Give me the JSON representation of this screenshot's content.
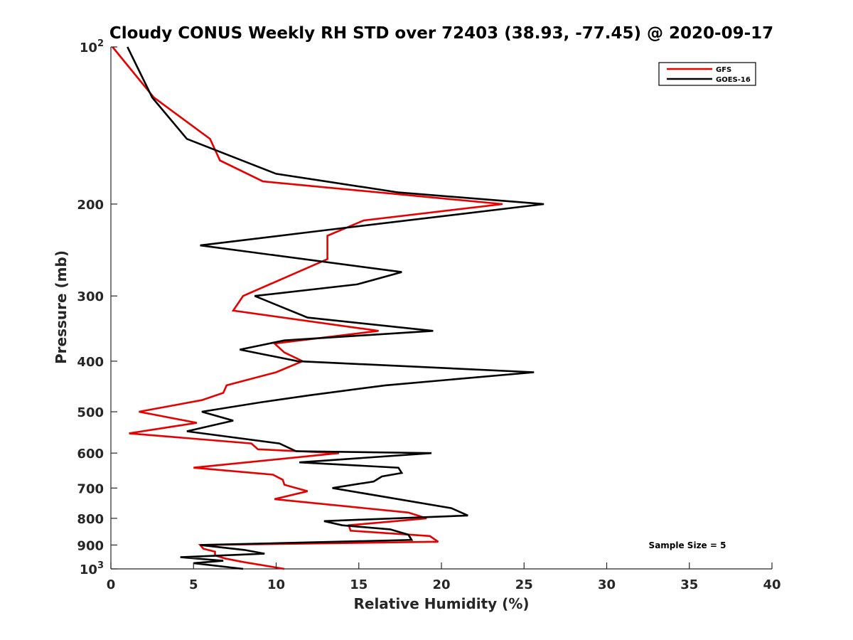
{
  "chart_data": {
    "type": "line",
    "title": "Cloudy CONUS Weekly RH STD over 72403 (38.93, -77.45) @ 2020-09-17",
    "xlabel": "Relative Humidity (%)",
    "ylabel": "Pressure (mb)",
    "xlim": [
      0,
      40
    ],
    "ylim": [
      100,
      1000
    ],
    "y_scale": "log",
    "y_reversed": true,
    "grid": false,
    "legend_position": "top-right",
    "x_ticks": [
      0,
      5,
      10,
      15,
      20,
      25,
      30,
      35,
      40
    ],
    "x_tick_labels": [
      "0",
      "5",
      "10",
      "15",
      "20",
      "25",
      "30",
      "35",
      "40"
    ],
    "y_ticks": [
      100,
      200,
      300,
      400,
      500,
      600,
      700,
      800,
      900,
      1000
    ],
    "y_tick_labels": [
      {
        "base": "10",
        "exp": "2"
      },
      {
        "base": "200",
        "exp": ""
      },
      {
        "base": "300",
        "exp": ""
      },
      {
        "base": "400",
        "exp": ""
      },
      {
        "base": "500",
        "exp": ""
      },
      {
        "base": "600",
        "exp": ""
      },
      {
        "base": "700",
        "exp": ""
      },
      {
        "base": "800",
        "exp": ""
      },
      {
        "base": "900",
        "exp": ""
      },
      {
        "base": "10",
        "exp": "3"
      }
    ],
    "annotation": "Sample Size = 5",
    "series": [
      {
        "name": "GFS",
        "color": "#e60000",
        "points": [
          [
            0.1,
            100
          ],
          [
            2.6,
            125
          ],
          [
            6.0,
            150
          ],
          [
            6.6,
            165
          ],
          [
            9.2,
            181
          ],
          [
            23.7,
            200
          ],
          [
            15.3,
            215
          ],
          [
            13.1,
            230
          ],
          [
            13.1,
            255
          ],
          [
            8.0,
            300
          ],
          [
            7.4,
            320
          ],
          [
            16.2,
            350
          ],
          [
            9.9,
            370
          ],
          [
            10.5,
            385
          ],
          [
            11.6,
            400
          ],
          [
            10.0,
            420
          ],
          [
            7.0,
            445
          ],
          [
            6.8,
            460
          ],
          [
            5.5,
            475
          ],
          [
            1.7,
            500
          ],
          [
            5.2,
            525
          ],
          [
            1.1,
            550
          ],
          [
            8.5,
            575
          ],
          [
            8.9,
            590
          ],
          [
            13.8,
            600
          ],
          [
            5.0,
            640
          ],
          [
            9.8,
            660
          ],
          [
            10.4,
            675
          ],
          [
            10.5,
            690
          ],
          [
            11.9,
            710
          ],
          [
            9.9,
            735
          ],
          [
            18.0,
            780
          ],
          [
            19.1,
            800
          ],
          [
            14.4,
            825
          ],
          [
            14.5,
            845
          ],
          [
            19.3,
            865
          ],
          [
            19.8,
            887
          ],
          [
            5.4,
            900
          ],
          [
            5.6,
            915
          ],
          [
            6.3,
            927
          ],
          [
            6.3,
            942
          ],
          [
            6.9,
            955
          ],
          [
            8.0,
            970
          ],
          [
            10.5,
            1000
          ]
        ]
      },
      {
        "name": "GOES-16",
        "color": "#000000",
        "points": [
          [
            1.0,
            100
          ],
          [
            2.5,
            125
          ],
          [
            4.6,
            150
          ],
          [
            10.0,
            175
          ],
          [
            17.4,
            190
          ],
          [
            26.2,
            200
          ],
          [
            12.7,
            225
          ],
          [
            5.4,
            240
          ],
          [
            17.6,
            270
          ],
          [
            14.9,
            285
          ],
          [
            8.7,
            300
          ],
          [
            11.9,
            330
          ],
          [
            19.5,
            350
          ],
          [
            10.5,
            365
          ],
          [
            7.8,
            380
          ],
          [
            11.3,
            400
          ],
          [
            25.6,
            420
          ],
          [
            16.6,
            445
          ],
          [
            12.0,
            465
          ],
          [
            9.0,
            480
          ],
          [
            5.5,
            500
          ],
          [
            7.4,
            520
          ],
          [
            4.6,
            545
          ],
          [
            10.2,
            575
          ],
          [
            11.2,
            595
          ],
          [
            19.4,
            600
          ],
          [
            11.4,
            625
          ],
          [
            17.4,
            640
          ],
          [
            17.6,
            655
          ],
          [
            16.4,
            665
          ],
          [
            15.9,
            680
          ],
          [
            13.4,
            700
          ],
          [
            20.6,
            765
          ],
          [
            21.6,
            790
          ],
          [
            12.9,
            810
          ],
          [
            14.0,
            825
          ],
          [
            16.9,
            840
          ],
          [
            18.0,
            860
          ],
          [
            18.2,
            880
          ],
          [
            5.4,
            900
          ],
          [
            8.1,
            920
          ],
          [
            9.3,
            935
          ],
          [
            4.2,
            950
          ],
          [
            6.8,
            965
          ],
          [
            5.0,
            975
          ],
          [
            8.0,
            1000
          ]
        ]
      }
    ]
  }
}
